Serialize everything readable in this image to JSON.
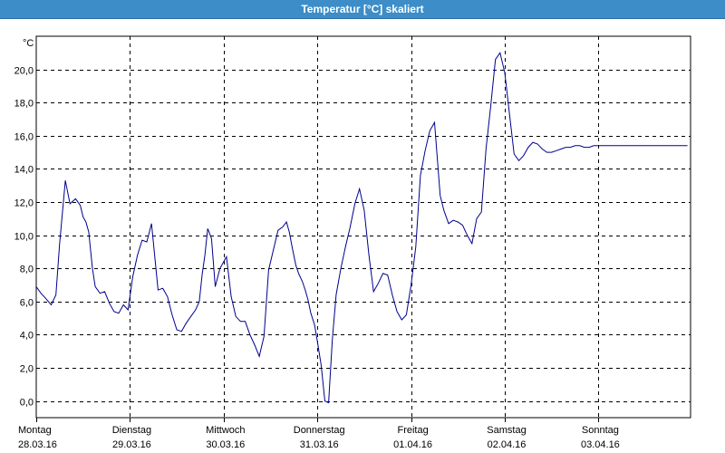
{
  "window": {
    "title": "Temperatur [°C] skaliert"
  },
  "chart_data": {
    "type": "line",
    "title": "Temperatur [°C] skaliert",
    "ylabel": "°C",
    "xlabel": "",
    "ylim": [
      -1.0,
      22.0
    ],
    "yticks": [
      0.0,
      2.0,
      4.0,
      6.0,
      8.0,
      10.0,
      12.0,
      14.0,
      16.0,
      18.0,
      20.0
    ],
    "ytick_labels": [
      "0,0",
      "2,0",
      "4,0",
      "6,0",
      "8,0",
      "10,0",
      "12,0",
      "14,0",
      "16,0",
      "18,0",
      "20,0"
    ],
    "grid": true,
    "line_color": "#00008b",
    "x_range_days": [
      0,
      7
    ],
    "xtick_positions": [
      0,
      1,
      2,
      3,
      4,
      5,
      6
    ],
    "xtick_labels": [
      {
        "day": "Montag",
        "date": "28.03.16"
      },
      {
        "day": "Dienstag",
        "date": "29.03.16"
      },
      {
        "day": "Mittwoch",
        "date": "30.03.16"
      },
      {
        "day": "Donnerstag",
        "date": "31.03.16"
      },
      {
        "day": "Freitag",
        "date": "01.04.16"
      },
      {
        "day": "Samstag",
        "date": "02.04.16"
      },
      {
        "day": "Sonntag",
        "date": "03.04.16"
      }
    ],
    "series": [
      {
        "x": [
          0.0,
          0.05,
          0.1,
          0.16,
          0.21,
          0.25,
          0.31,
          0.36,
          0.42,
          0.47,
          0.5,
          0.53,
          0.56,
          0.6,
          0.63,
          0.68,
          0.73,
          0.78,
          0.83,
          0.88,
          0.93,
          0.98,
          1.03,
          1.08,
          1.13,
          1.18,
          1.23,
          1.3,
          1.35,
          1.4,
          1.45,
          1.5,
          1.55,
          1.6,
          1.65,
          1.7,
          1.74,
          1.77,
          1.8,
          1.83,
          1.87,
          1.91,
          1.96,
          2.03,
          2.08,
          2.13,
          2.18,
          2.23,
          2.28,
          2.33,
          2.38,
          2.43,
          2.48,
          2.53,
          2.58,
          2.63,
          2.67,
          2.7,
          2.73,
          2.77,
          2.8,
          2.84,
          2.87,
          2.9,
          2.93,
          2.97,
          3.0,
          3.04,
          3.08,
          3.12,
          3.16,
          3.2,
          3.25,
          3.3,
          3.35,
          3.4,
          3.45,
          3.5,
          3.55,
          3.6,
          3.65,
          3.7,
          3.75,
          3.8,
          3.85,
          3.9,
          3.95,
          4.0,
          4.05,
          4.1,
          4.15,
          4.2,
          4.25,
          4.28,
          4.31,
          4.35,
          4.4,
          4.45,
          4.5,
          4.55,
          4.6,
          4.65,
          4.7,
          4.75,
          4.8,
          4.85,
          4.9,
          4.95,
          5.0,
          5.05,
          5.1,
          5.15,
          5.2,
          5.25,
          5.3,
          5.35,
          5.4,
          5.45,
          5.5,
          5.55,
          5.6,
          5.65,
          5.7,
          5.75,
          5.8,
          5.85,
          5.9,
          5.95,
          6.0,
          6.05,
          6.1,
          6.15,
          6.2,
          6.25,
          6.3,
          6.35,
          6.4,
          6.45,
          6.5,
          6.55,
          6.6,
          6.65,
          6.7,
          6.75,
          6.8,
          6.85,
          6.9,
          6.95,
          7.0
        ],
        "y": [
          6.9,
          6.5,
          6.2,
          5.8,
          6.4,
          9.5,
          13.3,
          11.9,
          12.2,
          11.8,
          11.1,
          10.8,
          10.2,
          8.0,
          6.9,
          6.5,
          6.6,
          5.9,
          5.4,
          5.3,
          5.8,
          5.5,
          7.5,
          8.8,
          9.7,
          9.6,
          10.7,
          6.7,
          6.8,
          6.3,
          5.2,
          4.3,
          4.2,
          4.7,
          5.1,
          5.5,
          6.0,
          7.6,
          8.8,
          10.4,
          9.8,
          6.9,
          8.0,
          8.7,
          6.3,
          5.1,
          4.8,
          4.8,
          4.0,
          3.4,
          2.7,
          3.9,
          7.9,
          9.1,
          10.3,
          10.5,
          10.8,
          10.2,
          9.3,
          8.2,
          7.7,
          7.2,
          6.7,
          6.1,
          5.3,
          4.6,
          3.6,
          2.2,
          0.0,
          -0.1,
          3.7,
          6.4,
          8.0,
          9.3,
          10.5,
          11.9,
          12.8,
          11.5,
          8.8,
          6.6,
          7.1,
          7.7,
          7.6,
          6.4,
          5.4,
          4.9,
          5.2,
          7.0,
          9.3,
          13.6,
          15.1,
          16.3,
          16.8,
          14.6,
          12.4,
          11.5,
          10.7,
          10.9,
          10.8,
          10.6,
          10.0,
          9.5,
          11.0,
          11.4,
          15.2,
          17.8,
          20.6,
          21.0,
          19.8,
          17.3,
          14.9,
          14.5,
          14.8,
          15.3,
          15.6,
          15.5,
          15.2,
          15.0,
          15.0,
          15.1,
          15.2,
          15.3,
          15.3,
          15.4,
          15.4,
          15.3,
          15.3,
          15.4,
          15.4,
          15.4,
          15.4,
          15.4,
          15.4,
          15.4,
          15.4,
          15.4,
          15.4,
          15.4,
          15.4,
          15.4,
          15.4,
          15.4,
          15.4,
          15.4,
          15.4,
          15.4,
          15.4,
          15.4,
          15.4
        ]
      }
    ]
  }
}
